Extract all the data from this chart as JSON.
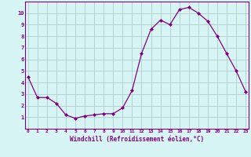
{
  "x": [
    0,
    1,
    2,
    3,
    4,
    5,
    6,
    7,
    8,
    9,
    10,
    11,
    12,
    13,
    14,
    15,
    16,
    17,
    18,
    19,
    20,
    21,
    22,
    23
  ],
  "y": [
    4.5,
    2.7,
    2.7,
    2.2,
    1.2,
    0.9,
    1.1,
    1.2,
    1.3,
    1.3,
    1.8,
    3.3,
    6.5,
    8.6,
    9.4,
    9.0,
    10.3,
    10.5,
    10.0,
    9.3,
    8.0,
    6.5,
    5.0,
    3.2
  ],
  "xlim": [
    -0.3,
    23.3
  ],
  "ylim": [
    0,
    11
  ],
  "yticks": [
    1,
    2,
    3,
    4,
    5,
    6,
    7,
    8,
    9,
    10
  ],
  "xticks": [
    0,
    1,
    2,
    3,
    4,
    5,
    6,
    7,
    8,
    9,
    10,
    11,
    12,
    13,
    14,
    15,
    16,
    17,
    18,
    19,
    20,
    21,
    22,
    23
  ],
  "xlabel": "Windchill (Refroidissement éolien,°C)",
  "line_color": "#800080",
  "marker": "D",
  "marker_size": 2.0,
  "background_color": "#d8f5f5",
  "grid_color": "#b0cece",
  "tick_color": "#800080",
  "label_color": "#800080"
}
